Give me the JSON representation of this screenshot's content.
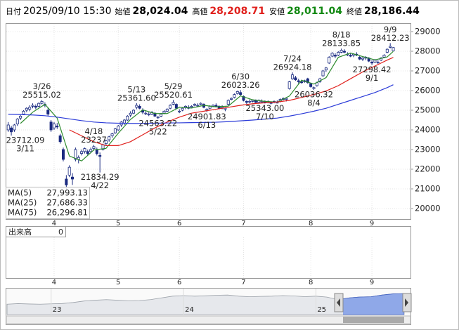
{
  "header": {
    "date_label": "日付",
    "datetime": "2025/09/10 15:30",
    "quotes": [
      {
        "name": "始値",
        "value": 28024.04,
        "label": "28,024.04",
        "color": "#000000"
      },
      {
        "name": "高値",
        "value": 28208.71,
        "label": "28,208.71",
        "color": "#e0201c"
      },
      {
        "name": "安値",
        "value": 28011.04,
        "label": "28,011.04",
        "color": "#118811"
      },
      {
        "name": "終値",
        "value": 28186.44,
        "label": "28,186.44",
        "color": "#000000"
      }
    ]
  },
  "chart_data": {
    "type": "candlestick",
    "open": [
      24000,
      24100,
      24000,
      24300,
      24600,
      24800,
      25000,
      25050,
      25200,
      25200,
      25200,
      25350,
      25300,
      25000,
      24400,
      24100,
      24200,
      23700,
      23000,
      21500,
      21700,
      21600,
      22500,
      22500,
      22800,
      22900,
      22900,
      22900,
      23050,
      23000,
      22700,
      23000,
      23300,
      23500,
      23700,
      23850,
      24000,
      24250,
      24350,
      24500,
      24750,
      24850,
      25150,
      25200,
      25000,
      24850,
      24800,
      24800,
      24850,
      24650,
      24700,
      24850,
      24950,
      25100,
      25300,
      25300,
      24950,
      25000,
      25150,
      25150,
      25150,
      25250,
      25250,
      25300,
      25300,
      25000,
      25100,
      25200,
      25250,
      25200,
      25100,
      25050,
      25300,
      25550,
      25650,
      25850,
      25900,
      25700,
      25450,
      25450,
      25450,
      25500,
      25400,
      25450,
      25450,
      25400,
      25400,
      25400,
      25400,
      25450,
      25550,
      25550,
      26100,
      26600,
      26650,
      26500,
      26450,
      26450,
      26600,
      26350,
      26100,
      26250,
      26450,
      26750,
      27050,
      27400,
      27750,
      27800,
      27800,
      27950,
      28000,
      27850,
      27800,
      27800,
      27850,
      27700,
      27600,
      27650,
      27650,
      27450,
      27450,
      27450,
      27550,
      27700,
      27950,
      28200,
      28024.04
    ],
    "high": [
      24400,
      24200,
      24300,
      24600,
      24800,
      25000,
      25150,
      25250,
      25350,
      25300,
      25400,
      25515.02,
      25400,
      25100,
      24500,
      24400,
      24350,
      23800,
      23100,
      21700,
      22200,
      21800,
      23100,
      22700,
      23000,
      23100,
      23000,
      23100,
      23237,
      23100,
      22850,
      23300,
      23500,
      23700,
      23850,
      24100,
      24250,
      24450,
      24550,
      24750,
      24950,
      25050,
      25361.6,
      25300,
      25100,
      24950,
      24900,
      24950,
      24900,
      24700,
      24850,
      25000,
      25100,
      25300,
      25520.61,
      25350,
      25050,
      25150,
      25250,
      25250,
      25250,
      25350,
      25350,
      25400,
      25350,
      25100,
      25250,
      25300,
      25350,
      25250,
      25250,
      25150,
      25550,
      25650,
      25850,
      26000,
      26023.26,
      25750,
      25500,
      25550,
      25550,
      25550,
      25550,
      25550,
      25500,
      25500,
      25450,
      25500,
      25500,
      25600,
      25650,
      25650,
      26500,
      26924.18,
      26750,
      26600,
      26550,
      26550,
      26650,
      26400,
      26200,
      26450,
      26650,
      27050,
      27200,
      27750,
      27950,
      27900,
      28000,
      28133.85,
      28100,
      27950,
      27900,
      27900,
      27950,
      27800,
      27700,
      27750,
      27700,
      27550,
      27600,
      27550,
      27700,
      27850,
      28150,
      28412.23,
      28208.71
    ],
    "low": [
      23900,
      23712.09,
      23900,
      24200,
      24500,
      24750,
      24900,
      24950,
      25100,
      25050,
      25150,
      25300,
      25150,
      24700,
      23900,
      24000,
      24050,
      23300,
      22400,
      20900,
      21600,
      21200,
      22400,
      22300,
      22700,
      22800,
      22700,
      22850,
      22950,
      22700,
      21834.29,
      22950,
      23200,
      23400,
      23600,
      23800,
      23950,
      24150,
      24250,
      24450,
      24650,
      24800,
      25050,
      25050,
      24800,
      24750,
      24700,
      24750,
      24650,
      24563.22,
      24650,
      24800,
      24900,
      25050,
      25250,
      25050,
      24850,
      24950,
      25050,
      25050,
      25100,
      25200,
      25200,
      25250,
      25100,
      24901.83,
      25050,
      25150,
      25150,
      25050,
      25050,
      24950,
      25250,
      25500,
      25600,
      25800,
      25750,
      25450,
      25300,
      25350,
      25400,
      25350,
      25350,
      25400,
      25343,
      25350,
      25300,
      25350,
      25350,
      25400,
      25500,
      25450,
      26050,
      26550,
      26500,
      26350,
      26350,
      26400,
      26350,
      26150,
      26036.32,
      26200,
      26400,
      26700,
      26950,
      27350,
      27700,
      27650,
      27750,
      27900,
      27900,
      27750,
      27700,
      27700,
      27750,
      27550,
      27500,
      27550,
      27450,
      27298.42,
      27400,
      27350,
      27500,
      27650,
      27900,
      28150,
      28011.04
    ],
    "close": [
      24250,
      23900,
      24250,
      24550,
      24700,
      24950,
      25100,
      25150,
      25250,
      25150,
      25350,
      25450,
      25250,
      24800,
      24000,
      24300,
      24150,
      23400,
      22500,
      21200,
      22100,
      21500,
      23000,
      22600,
      22900,
      23050,
      22800,
      23000,
      23150,
      22800,
      22650,
      23250,
      23450,
      23650,
      23800,
      24050,
      24200,
      24400,
      24500,
      24700,
      24850,
      25000,
      25250,
      25100,
      24900,
      24850,
      24800,
      24900,
      24700,
      24650,
      24800,
      24950,
      25050,
      25250,
      25400,
      25100,
      24950,
      25100,
      25200,
      25100,
      25200,
      25300,
      25250,
      25350,
      25150,
      25050,
      25200,
      25250,
      25200,
      25100,
      25150,
      25100,
      25500,
      25600,
      25800,
      25950,
      25800,
      25500,
      25400,
      25450,
      25500,
      25400,
      25500,
      25450,
      25400,
      25450,
      25350,
      25450,
      25400,
      25550,
      25600,
      25600,
      26450,
      26800,
      26550,
      26450,
      26400,
      26500,
      26400,
      26200,
      26150,
      26400,
      26600,
      27000,
      27150,
      27700,
      27900,
      27750,
      27950,
      28050,
      27950,
      27850,
      27750,
      27850,
      27800,
      27600,
      27650,
      27700,
      27500,
      27400,
      27550,
      27450,
      27650,
      27800,
      28100,
      28250,
      28186.44
    ],
    "up_color": "#ffffff",
    "down_color": "#1a2a80",
    "wick_color": "#1a2a80",
    "ma": [
      {
        "name": "MA(5)",
        "color": "#2e8b2e",
        "value_label": "27,993.13",
        "x": [
          4,
          8,
          12,
          16,
          20,
          24,
          28,
          32,
          36,
          40,
          44,
          48,
          52,
          56,
          60,
          64,
          68,
          72,
          76,
          80,
          84,
          88,
          92,
          96,
          100,
          104,
          108,
          112,
          116,
          120,
          124,
          126
        ],
        "values": [
          24330,
          24900,
          25300,
          24600,
          22670,
          22420,
          22980,
          23060,
          23830,
          24530,
          25020,
          24830,
          24830,
          25150,
          25110,
          25250,
          25170,
          25210,
          25730,
          25530,
          25450,
          25410,
          25720,
          26530,
          26330,
          26660,
          27690,
          27910,
          27730,
          27560,
          27710,
          27993.13
        ]
      },
      {
        "name": "MA(25)",
        "color": "#e0201c",
        "value_label": "27,686.33",
        "x": [
          20,
          24,
          28,
          32,
          36,
          40,
          44,
          48,
          52,
          56,
          60,
          64,
          68,
          72,
          76,
          80,
          84,
          88,
          92,
          96,
          100,
          104,
          108,
          112,
          116,
          120,
          124,
          126
        ],
        "values": [
          24000,
          23700,
          23400,
          23200,
          23200,
          23400,
          23750,
          24100,
          24400,
          24650,
          24850,
          24950,
          25050,
          25150,
          25250,
          25330,
          25380,
          25420,
          25500,
          25650,
          25800,
          25980,
          26250,
          26600,
          26950,
          27250,
          27550,
          27686.33
        ]
      },
      {
        "name": "MA(75)",
        "color": "#2b3bd8",
        "value_label": "26,296.81",
        "x": [
          0,
          4,
          8,
          12,
          16,
          20,
          24,
          28,
          32,
          36,
          40,
          44,
          48,
          52,
          56,
          60,
          64,
          68,
          72,
          76,
          80,
          84,
          88,
          92,
          96,
          100,
          104,
          108,
          112,
          116,
          120,
          124,
          126
        ],
        "values": [
          24800,
          24780,
          24760,
          24720,
          24650,
          24560,
          24470,
          24400,
          24360,
          24340,
          24330,
          24330,
          24340,
          24350,
          24360,
          24370,
          24380,
          24390,
          24420,
          24460,
          24500,
          24550,
          24600,
          24700,
          24820,
          24950,
          25100,
          25300,
          25500,
          25700,
          25900,
          26150,
          26296.81
        ]
      }
    ],
    "annotations": [
      {
        "x": 11,
        "date": "3/26",
        "value": 25515.02
      },
      {
        "x": 1,
        "date": "3/11",
        "value": 23712.09
      },
      {
        "x": 28,
        "date": "4/18",
        "value": 23237
      },
      {
        "x": 30,
        "date": "4/22",
        "value": 21834.29
      },
      {
        "x": 42,
        "date": "5/13",
        "value": 25361.6,
        "label": "25361.60"
      },
      {
        "x": 54,
        "date": "5/29",
        "value": 25520.61
      },
      {
        "x": 49,
        "date": "5/22",
        "value": 24563.22
      },
      {
        "x": 65,
        "date": "6/13",
        "value": 24901.83
      },
      {
        "x": 76,
        "date": "6/30",
        "value": 26023.26
      },
      {
        "x": 84,
        "date": "7/10",
        "value": 25343,
        "label": "25343.00"
      },
      {
        "x": 93,
        "date": "7/24",
        "value": 26924.18
      },
      {
        "x": 100,
        "date": "8/4",
        "value": 26036.32
      },
      {
        "x": 109,
        "date": "8/18",
        "value": 28133.85
      },
      {
        "x": 119,
        "date": "9/1",
        "value": 27298.42
      },
      {
        "x": 125,
        "date": "9/9",
        "value": 28412.23
      }
    ],
    "xlim": [
      -0.4,
      131.4
    ],
    "xticks": [
      {
        "value": 15,
        "label": "4"
      },
      {
        "value": 36,
        "label": "5"
      },
      {
        "value": 56,
        "label": "6"
      },
      {
        "value": 77,
        "label": "7"
      },
      {
        "value": 99,
        "label": "8"
      },
      {
        "value": 119,
        "label": "9"
      }
    ],
    "ylim": [
      19464,
      29357
    ],
    "yticks": [
      20000,
      21000,
      22000,
      23000,
      24000,
      25000,
      26000,
      27000,
      28000,
      29000
    ],
    "grid": true,
    "volume": {
      "label": "出来高",
      "value": 0
    },
    "navigator": {
      "color": "#9aa0a8",
      "selected_color": "#8fa8e8",
      "values": [
        19000,
        19500,
        19200,
        19000,
        19300,
        19600,
        20500,
        21800,
        22500,
        23000,
        22500,
        22000,
        22200,
        23000,
        24500,
        26000,
        26500,
        26000,
        26300,
        26800,
        27000,
        26000,
        25500,
        25800,
        26000,
        26500,
        26200,
        25600,
        26000,
        25200,
        23000,
        24500,
        25300,
        25500,
        27000,
        28000,
        28186.44
      ],
      "ylim": [
        10000,
        32000
      ],
      "xticks": [
        {
          "value": 4,
          "label": "23"
        },
        {
          "value": 16,
          "label": "24"
        },
        {
          "value": 28,
          "label": "25"
        }
      ]
    }
  }
}
